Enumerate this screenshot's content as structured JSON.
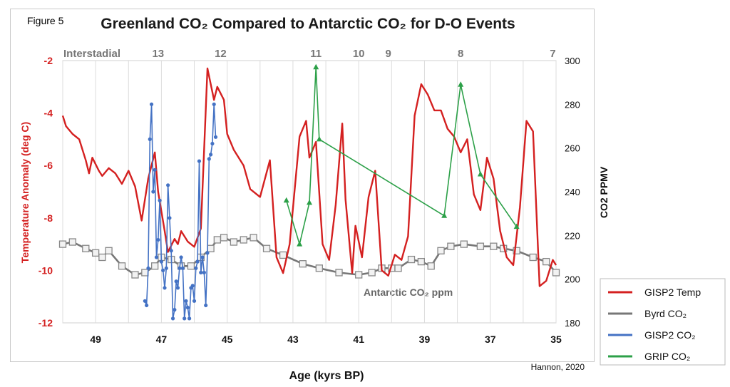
{
  "figure_label": "Figure 5",
  "credit": "Hannon, 2020",
  "chart_data": {
    "type": "line",
    "title": "Greenland CO₂ Compared to Antarctic CO₂  for D-O Events",
    "xlabel": "Age (kyrs BP)",
    "ylabel_left": "Temperature Anomaly (deg C)",
    "ylabel_right": "CO2 PPMV",
    "x_range": [
      50,
      35
    ],
    "x_reversed": true,
    "xticks": [
      49,
      47,
      45,
      43,
      41,
      39,
      37,
      35
    ],
    "y_left_range": [
      -12,
      -2
    ],
    "y_left_ticks": [
      -12,
      -10,
      -8,
      -6,
      -4,
      -2
    ],
    "y_right_range": [
      180,
      300
    ],
    "y_right_ticks": [
      180,
      200,
      220,
      240,
      260,
      280,
      300
    ],
    "grid": "vertical",
    "interstadial_label": "Interstadial",
    "interstadial_numbers": [
      {
        "x": 47.1,
        "label": "13"
      },
      {
        "x": 45.2,
        "label": "12"
      },
      {
        "x": 42.3,
        "label": "11"
      },
      {
        "x": 41.0,
        "label": "10"
      },
      {
        "x": 40.1,
        "label": "9"
      },
      {
        "x": 37.9,
        "label": "8"
      },
      {
        "x": 35.1,
        "label": "7"
      }
    ],
    "annotation": "Antarctic CO₂ ppm",
    "legend_position": "outside-right-bottom",
    "series": [
      {
        "name": "GISP2 Temp",
        "axis": "left",
        "color": "#d42020",
        "marker": "none",
        "x": [
          50.0,
          49.9,
          49.7,
          49.5,
          49.3,
          49.2,
          49.1,
          48.9,
          48.8,
          48.6,
          48.4,
          48.2,
          48.0,
          47.8,
          47.6,
          47.4,
          47.2,
          47.1,
          46.9,
          46.8,
          46.6,
          46.5,
          46.4,
          46.2,
          46.0,
          45.8,
          45.6,
          45.4,
          45.3,
          45.1,
          45.0,
          44.8,
          44.5,
          44.3,
          44.0,
          43.7,
          43.5,
          43.3,
          43.1,
          42.8,
          42.6,
          42.5,
          42.3,
          42.1,
          41.9,
          41.7,
          41.5,
          41.4,
          41.2,
          41.1,
          40.9,
          40.7,
          40.5,
          40.3,
          40.1,
          39.9,
          39.7,
          39.5,
          39.3,
          39.1,
          38.9,
          38.7,
          38.5,
          38.3,
          38.1,
          37.9,
          37.7,
          37.5,
          37.3,
          37.1,
          36.9,
          36.7,
          36.5,
          36.3,
          36.1,
          35.9,
          35.7,
          35.5,
          35.3,
          35.1,
          35.0
        ],
        "y": [
          -4.1,
          -4.5,
          -4.8,
          -5.0,
          -5.8,
          -6.3,
          -5.7,
          -6.2,
          -6.4,
          -6.1,
          -6.3,
          -6.7,
          -6.2,
          -6.8,
          -8.1,
          -6.5,
          -5.5,
          -7.0,
          -8.5,
          -9.3,
          -8.8,
          -9.0,
          -8.5,
          -8.9,
          -9.1,
          -8.4,
          -2.3,
          -3.5,
          -3.0,
          -3.5,
          -4.8,
          -5.4,
          -6.0,
          -6.9,
          -7.2,
          -5.8,
          -9.5,
          -10.1,
          -9.0,
          -4.9,
          -4.3,
          -5.7,
          -5.1,
          -9.0,
          -9.6,
          -7.5,
          -4.4,
          -7.3,
          -10.1,
          -8.3,
          -9.5,
          -7.2,
          -6.2,
          -10.0,
          -10.2,
          -9.4,
          -9.6,
          -8.7,
          -4.1,
          -2.9,
          -3.3,
          -3.9,
          -3.9,
          -4.6,
          -4.9,
          -5.5,
          -5.0,
          -7.1,
          -7.7,
          -5.7,
          -6.5,
          -8.5,
          -9.5,
          -9.8,
          -7.6,
          -4.3,
          -4.7,
          -10.6,
          -10.4,
          -9.6,
          -9.8
        ]
      },
      {
        "name": "Byrd CO₂",
        "axis": "right",
        "color": "#777777",
        "marker": "square",
        "x": [
          50.0,
          49.7,
          49.3,
          49.0,
          48.8,
          48.6,
          48.2,
          47.8,
          47.5,
          47.2,
          47.0,
          46.7,
          46.4,
          46.1,
          45.8,
          45.5,
          45.3,
          45.1,
          44.8,
          44.5,
          44.2,
          43.8,
          43.3,
          42.7,
          42.2,
          41.6,
          41.0,
          40.6,
          40.3,
          40.0,
          39.8,
          39.4,
          39.1,
          38.8,
          38.5,
          38.2,
          37.8,
          37.3,
          36.9,
          36.6,
          36.2,
          35.7,
          35.3,
          35.0
        ],
        "y": [
          216,
          217,
          214,
          212,
          210,
          213,
          206,
          202,
          203,
          206,
          210,
          209,
          206,
          206,
          210,
          214,
          218,
          219,
          217,
          218,
          219,
          214,
          211,
          207,
          205,
          203,
          202,
          203,
          205,
          205,
          205,
          209,
          208,
          206,
          213,
          215,
          216,
          215,
          215,
          214,
          213,
          210,
          208,
          203
        ]
      },
      {
        "name": "GISP2 CO₂",
        "axis": "right",
        "color": "#4472c4",
        "marker": "circle",
        "x": [
          47.5,
          47.45,
          47.4,
          47.35,
          47.3,
          47.25,
          47.2,
          47.15,
          47.1,
          47.05,
          47.0,
          46.95,
          46.9,
          46.85,
          46.8,
          46.75,
          46.7,
          46.65,
          46.6,
          46.55,
          46.5,
          46.45,
          46.4,
          46.35,
          46.3,
          46.25,
          46.2,
          46.15,
          46.1,
          46.05,
          46.0,
          45.95,
          45.9,
          45.85,
          45.8,
          45.75,
          45.7,
          45.65,
          45.6,
          45.55,
          45.5,
          45.45,
          45.4,
          45.35
        ],
        "y": [
          190,
          188,
          205,
          264,
          280,
          240,
          250,
          210,
          218,
          236,
          208,
          204,
          196,
          205,
          243,
          228,
          213,
          182,
          186,
          199,
          196,
          205,
          210,
          205,
          182,
          190,
          187,
          182,
          196,
          197,
          190,
          205,
          208,
          254,
          203,
          210,
          203,
          188,
          212,
          255,
          257,
          262,
          280,
          265
        ]
      },
      {
        "name": "GRIP CO₂",
        "axis": "right",
        "color": "#2ca048",
        "marker": "triangle",
        "x": [
          43.2,
          42.8,
          42.5,
          42.3,
          42.2,
          38.4,
          37.9,
          37.3,
          36.2
        ],
        "y": [
          236,
          216,
          235,
          297,
          264,
          229,
          289,
          248,
          224
        ]
      }
    ]
  }
}
